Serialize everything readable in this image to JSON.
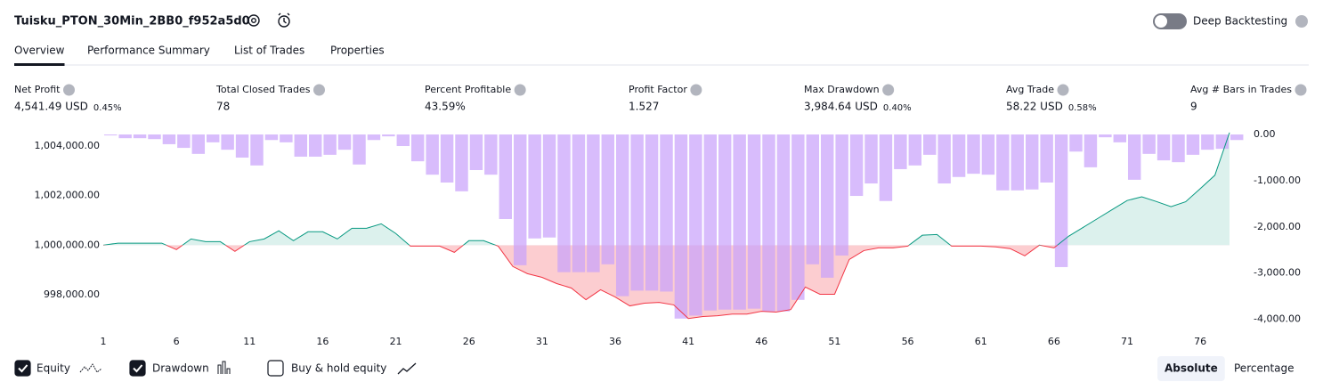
{
  "header": {
    "title": "Tuisku_PTON_30Min_2BB0_f952a5d0",
    "toggle_label": "Deep Backtesting",
    "toggle_on": false
  },
  "tabs": [
    "Overview",
    "Performance Summary",
    "List of Trades",
    "Properties"
  ],
  "metrics": [
    {
      "label": "Net Profit",
      "value": "4,541.49 USD",
      "percent": "0.45%",
      "color": "#089981"
    },
    {
      "label": "Total Closed Trades",
      "value": "78",
      "color": "#131722"
    },
    {
      "label": "Percent Profitable",
      "value": "43.59%",
      "color": "#089981"
    },
    {
      "label": "Profit Factor",
      "value": "1.527",
      "color": "#089981"
    },
    {
      "label": "Max Drawdown",
      "value": "3,984.64 USD",
      "percent": "0.40%",
      "color": "#f23645"
    },
    {
      "label": "Avg Trade",
      "value": "58.22 USD",
      "percent": "0.58%",
      "color": "#089981"
    },
    {
      "label": "Avg # Bars in Trades",
      "value": "9",
      "color": "#131722"
    }
  ],
  "chart_data": {
    "type": "combo",
    "x": [
      1,
      2,
      3,
      4,
      5,
      6,
      7,
      8,
      9,
      10,
      11,
      12,
      13,
      14,
      15,
      16,
      17,
      18,
      19,
      20,
      21,
      22,
      23,
      24,
      25,
      26,
      27,
      28,
      29,
      30,
      31,
      32,
      33,
      34,
      35,
      36,
      37,
      38,
      39,
      40,
      41,
      42,
      43,
      44,
      45,
      46,
      47,
      48,
      49,
      50,
      51,
      52,
      53,
      54,
      55,
      56,
      57,
      58,
      59,
      60,
      61,
      62,
      63,
      64,
      65,
      66,
      67,
      68,
      69,
      70,
      71,
      72,
      73,
      74,
      75,
      76,
      77,
      78
    ],
    "xlim": [
      1,
      78
    ],
    "xticks": [
      1,
      6,
      11,
      16,
      21,
      26,
      31,
      36,
      41,
      46,
      51,
      56,
      61,
      66,
      71,
      76
    ],
    "ylim": [
      996600,
      1004500
    ],
    "yticks": [
      {
        "value": 998000,
        "label": "998,000.00"
      },
      {
        "value": 1000000,
        "label": "1,000,000.00"
      },
      {
        "value": 1002000,
        "label": "1,002,000.00"
      },
      {
        "value": 1004000,
        "label": "1,004,000.00"
      }
    ],
    "y2lim": [
      -4220,
      20
    ],
    "y2ticks": [
      {
        "value": 0,
        "label": "0.00"
      },
      {
        "value": -1000,
        "label": "-1,000.00"
      },
      {
        "value": -2000,
        "label": "-2,000.00"
      },
      {
        "value": -3000,
        "label": "-3,000.00"
      },
      {
        "value": -4000,
        "label": "-4,000.00"
      }
    ],
    "baseline": 1000000,
    "series": [
      {
        "name": "Equity",
        "color": "#089981",
        "negative_color": "#f23645",
        "checked": true,
        "values": [
          1000000,
          1000080,
          1000080,
          1000080,
          1000080,
          999820,
          1000250,
          1000140,
          1000140,
          999750,
          1000140,
          1000250,
          1000580,
          1000180,
          1000540,
          1000540,
          1000250,
          1000680,
          1000680,
          1000860,
          1000470,
          999960,
          999960,
          999960,
          999710,
          1000180,
          1000180,
          999960,
          999140,
          998850,
          998700,
          998450,
          998270,
          997800,
          998200,
          997910,
          997550,
          997660,
          997690,
          997590,
          997040,
          997120,
          997150,
          997220,
          997220,
          997330,
          997300,
          997400,
          998310,
          998020,
          998020,
          999420,
          999780,
          999890,
          999890,
          999960,
          1000400,
          1000430,
          999960,
          999960,
          999960,
          999930,
          999860,
          999570,
          1000000,
          999890,
          1000360,
          1000720,
          1001080,
          1001440,
          1001800,
          1001950,
          1001760,
          1001550,
          1001750,
          1002280,
          1002820,
          1004541
        ]
      },
      {
        "name": "Drawdown",
        "color": "#c9a2fb",
        "axis": "y2",
        "checked": true,
        "values": [
          -20,
          -80,
          -80,
          -100,
          -210,
          -290,
          -420,
          -170,
          -330,
          -500,
          -670,
          -120,
          -170,
          -480,
          -480,
          -440,
          -330,
          -650,
          -120,
          -40,
          -250,
          -580,
          -870,
          -1040,
          -1230,
          -770,
          -870,
          -1830,
          -2830,
          -2250,
          -2230,
          -2980,
          -2980,
          -2980,
          -2810,
          -3500,
          -3380,
          -3380,
          -3400,
          -3985,
          -3920,
          -3810,
          -3790,
          -3790,
          -3770,
          -3830,
          -3830,
          -3580,
          -2810,
          -3100,
          -2620,
          -1330,
          -1060,
          -1440,
          -750,
          -670,
          -440,
          -1060,
          -920,
          -850,
          -870,
          -1210,
          -1210,
          -1190,
          -1040,
          -2870,
          -370,
          -710,
          -60,
          -170,
          -980,
          -420,
          -560,
          -600,
          -440,
          -330,
          -310,
          -120
        ]
      }
    ],
    "buy_hold_label": "Buy & hold equity",
    "buy_hold_checked": false
  },
  "view_buttons": [
    "Absolute",
    "Percentage"
  ],
  "active_view": 0
}
